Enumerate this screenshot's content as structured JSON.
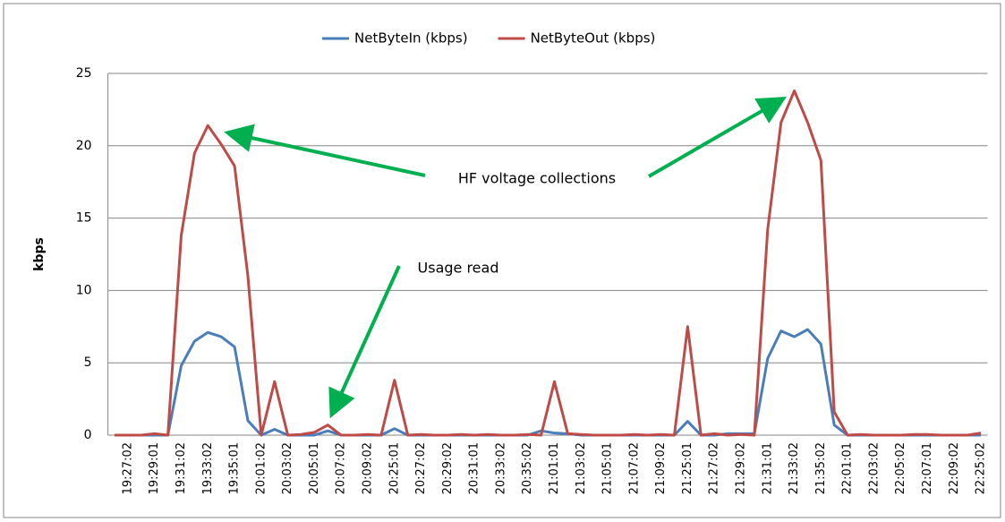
{
  "chart_data": {
    "type": "line",
    "y_label": "kbps",
    "categories": [
      null,
      "19:27:02",
      null,
      "19:29:01",
      null,
      "19:31:02",
      null,
      "19:33:02",
      null,
      "19:35:01",
      null,
      "20:01:02",
      null,
      "20:03:02",
      null,
      "20:05:01",
      null,
      "20:07:02",
      null,
      "20:09:02",
      null,
      "20:25:01",
      null,
      "20:27:02",
      null,
      "20:29:02",
      null,
      "20:31:01",
      null,
      "20:33:02",
      null,
      "20:35:02",
      null,
      "21:01:01",
      null,
      "21:03:02",
      null,
      "21:05:01",
      null,
      "21:07:02",
      null,
      "21:09:02",
      null,
      "21:25:01",
      null,
      "21:27:02",
      null,
      "21:29:02",
      null,
      "21:31:01",
      null,
      "21:33:02",
      null,
      "21:35:02",
      null,
      "22:01:01",
      null,
      "22:03:02",
      null,
      "22:05:02",
      null,
      "22:07:01",
      null,
      "22:09:02",
      null,
      "22:25:02"
    ],
    "series": [
      {
        "name": "NetByteIn (kbps)",
        "color": "#4a7ebb",
        "values": [
          0,
          0,
          0,
          0,
          0,
          4.8,
          6.5,
          7.1,
          6.8,
          6.1,
          1.0,
          0,
          0.4,
          0,
          0,
          0,
          0.3,
          0,
          0,
          0,
          0,
          0.45,
          0,
          0,
          0,
          0,
          0,
          0,
          0,
          0,
          0,
          0,
          0.3,
          0.15,
          0.1,
          0,
          0,
          0,
          0,
          0,
          0,
          0,
          0,
          0.95,
          0,
          0,
          0.1,
          0.1,
          0.1,
          5.3,
          7.2,
          6.8,
          7.3,
          6.3,
          0.7,
          0,
          0,
          0,
          0,
          0,
          0,
          0,
          0,
          0,
          0,
          0
        ]
      },
      {
        "name": "NetByteOut (kbps)",
        "color": "#be4b48",
        "values": [
          0,
          0,
          0,
          0.1,
          0,
          13.8,
          19.5,
          21.4,
          20.1,
          18.6,
          11,
          0,
          3.7,
          0,
          0.05,
          0.2,
          0.7,
          0,
          0,
          0.05,
          0,
          3.8,
          0,
          0.05,
          0,
          0,
          0.05,
          0,
          0.05,
          0,
          0,
          0.05,
          0,
          3.7,
          0.1,
          0.05,
          0,
          0,
          0,
          0.05,
          0,
          0.05,
          0,
          7.5,
          0,
          0.1,
          0,
          0.05,
          0,
          14.2,
          21.6,
          23.8,
          21.6,
          19.0,
          1.6,
          0,
          0.05,
          0,
          0,
          0,
          0.05,
          0.05,
          0,
          0,
          0,
          0.15
        ]
      }
    ],
    "ylim": [
      0,
      25
    ],
    "yticks": [
      0,
      5,
      10,
      15,
      20,
      25
    ],
    "grid": true,
    "legend": "top",
    "annotations": [
      "HF voltage collections",
      "Usage read"
    ]
  }
}
